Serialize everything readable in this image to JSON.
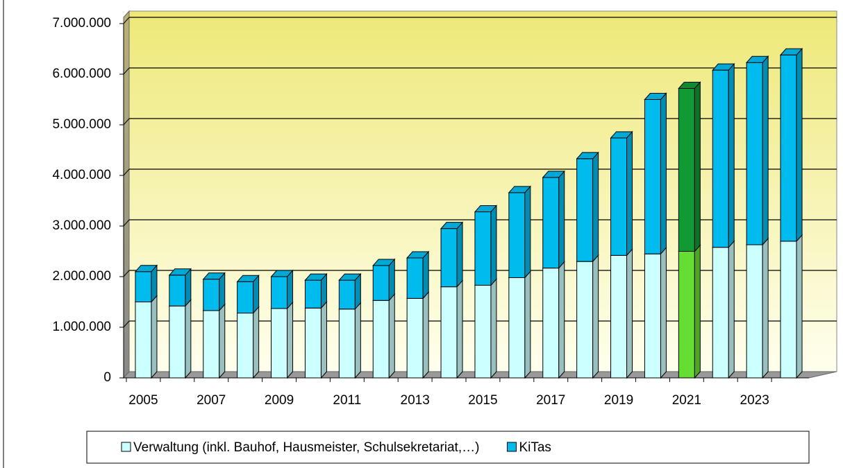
{
  "chart_data": {
    "type": "stacked_bar_3d",
    "categories": [
      "2005",
      null,
      "2007",
      null,
      "2009",
      null,
      "2011",
      null,
      "2013",
      null,
      "2015",
      null,
      "2017",
      null,
      "2019",
      null,
      "2021",
      null,
      "2023",
      null
    ],
    "series": [
      {
        "name": "Verwaltung (inkl. Bauhof, Hausmeister, Schulsekretariat,…)",
        "color": "#ccffff",
        "colors": [
          "#ccffff",
          "#ccffff",
          "#ccffff",
          "#ccffff",
          "#ccffff",
          "#ccffff",
          "#ccffff",
          "#ccffff",
          "#ccffff",
          "#ccffff",
          "#ccffff",
          "#ccffff",
          "#ccffff",
          "#ccffff",
          "#ccffff",
          "#ccffff",
          "#66dd33",
          "#ccffff",
          "#ccffff",
          "#ccffff"
        ],
        "values": [
          1500000,
          1420000,
          1330000,
          1280000,
          1370000,
          1380000,
          1360000,
          1530000,
          1570000,
          1800000,
          1830000,
          1980000,
          2170000,
          2300000,
          2420000,
          2450000,
          2500000,
          2580000,
          2630000,
          2700000
        ]
      },
      {
        "name": "KiTas",
        "color": "#00bbee",
        "colors": [
          "#00bbee",
          "#00bbee",
          "#00bbee",
          "#00bbee",
          "#00bbee",
          "#00bbee",
          "#00bbee",
          "#00bbee",
          "#00bbee",
          "#00bbee",
          "#00bbee",
          "#00bbee",
          "#00bbee",
          "#00bbee",
          "#00bbee",
          "#00bbee",
          "#119933",
          "#00bbee",
          "#00bbee",
          "#00bbee"
        ],
        "values": [
          600000,
          610000,
          620000,
          620000,
          630000,
          550000,
          570000,
          690000,
          800000,
          1150000,
          1450000,
          1680000,
          1790000,
          2030000,
          2320000,
          3050000,
          3220000,
          3500000,
          3600000,
          3680000
        ]
      }
    ],
    "ylim": [
      0,
      7000000
    ],
    "yticks": [
      0,
      {
        "value": 1000000,
        "label": "1.000.000"
      },
      {
        "value": 2000000,
        "label": "2.000.000"
      },
      {
        "value": 3000000,
        "label": "3.000.000"
      },
      {
        "value": 4000000,
        "label": "4.000.000"
      },
      {
        "value": 5000000,
        "label": "5.000.000"
      },
      {
        "value": 6000000,
        "label": "6.000.000"
      },
      {
        "value": 7000000,
        "label": "7.000.000"
      }
    ],
    "grid": true,
    "legend": "bottom"
  }
}
